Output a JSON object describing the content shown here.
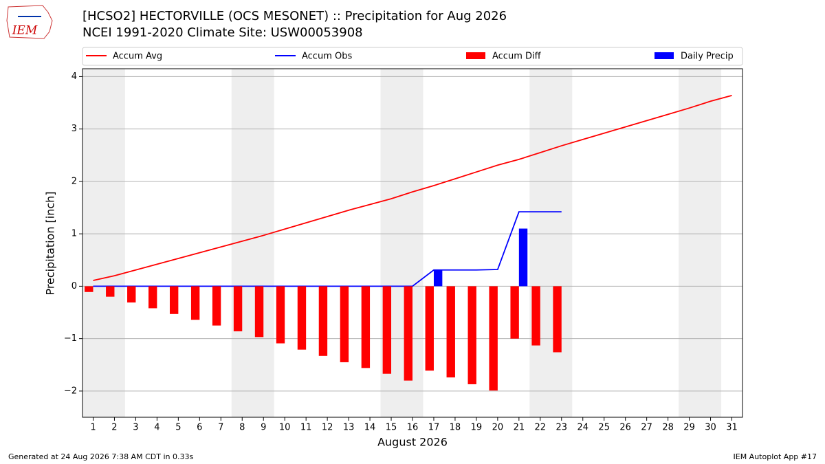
{
  "chart_data": {
    "type": "line",
    "title": "[HCSO2] HECTORVILLE (OCS MESONET) :: Precipitation for Aug 2026",
    "subtitle": "NCEI 1991-2020 Climate Site: USW00053908",
    "logo_text": "IEM",
    "x_label": "August 2026",
    "y_label": "Precipitation [inch]",
    "footer_left": "Generated at 24 Aug 2026 7:38 AM CDT in 0.33s",
    "footer_right": "IEM Autoplot App #17",
    "x": [
      1,
      2,
      3,
      4,
      5,
      6,
      7,
      8,
      9,
      10,
      11,
      12,
      13,
      14,
      15,
      16,
      17,
      18,
      19,
      20,
      21,
      22,
      23,
      24,
      25,
      26,
      27,
      28,
      29,
      30,
      31
    ],
    "xticks": [
      1,
      2,
      3,
      4,
      5,
      6,
      7,
      8,
      9,
      10,
      11,
      12,
      13,
      14,
      15,
      16,
      17,
      18,
      19,
      20,
      21,
      22,
      23,
      24,
      25,
      26,
      27,
      28,
      29,
      30,
      31
    ],
    "xlim": [
      0.5,
      31.5
    ],
    "ylim": [
      -2.5,
      4.15
    ],
    "yticks": [
      {
        "value": -2,
        "label": "−2"
      },
      {
        "value": -1,
        "label": "−1"
      },
      0,
      1,
      2,
      3,
      4
    ],
    "grid": true,
    "weekend_spans": [
      [
        0.5,
        2.5
      ],
      [
        7.5,
        9.5
      ],
      [
        14.5,
        16.5
      ],
      [
        21.5,
        23.5
      ],
      [
        28.5,
        30.5
      ]
    ],
    "series": [
      {
        "name": "Accum Avg",
        "color": "#ff0000",
        "style": "line",
        "values": [
          0.11,
          0.2,
          0.31,
          0.42,
          0.53,
          0.64,
          0.75,
          0.86,
          0.97,
          1.09,
          1.21,
          1.33,
          1.45,
          1.56,
          1.67,
          1.8,
          1.92,
          2.05,
          2.18,
          2.31,
          2.42,
          2.55,
          2.68,
          2.8,
          2.92,
          3.04,
          3.16,
          3.28,
          3.4,
          3.53,
          3.64
        ]
      },
      {
        "name": "Accum Obs",
        "color": "#0000ff",
        "style": "line",
        "values": [
          0,
          0,
          0,
          0,
          0,
          0,
          0,
          0,
          0,
          0,
          0,
          0,
          0,
          0,
          0,
          0,
          0.31,
          0.31,
          0.31,
          0.32,
          1.42,
          1.42,
          1.42,
          null,
          null,
          null,
          null,
          null,
          null,
          null,
          null
        ]
      },
      {
        "name": "Accum Diff",
        "color": "#ff0000",
        "style": "bar",
        "values": [
          -0.11,
          -0.2,
          -0.31,
          -0.42,
          -0.53,
          -0.64,
          -0.75,
          -0.86,
          -0.97,
          -1.09,
          -1.21,
          -1.33,
          -1.45,
          -1.56,
          -1.67,
          -1.8,
          -1.61,
          -1.74,
          -1.87,
          -1.99,
          -1.0,
          -1.13,
          -1.26,
          null,
          null,
          null,
          null,
          null,
          null,
          null,
          null
        ]
      },
      {
        "name": "Daily Precip",
        "color": "#0000ff",
        "style": "bar",
        "values": [
          0,
          0,
          0,
          0,
          0,
          0,
          0,
          0,
          0,
          0,
          0,
          0,
          0,
          0,
          0,
          0,
          0.31,
          0,
          0,
          0,
          1.1,
          0,
          0,
          null,
          null,
          null,
          null,
          null,
          null,
          null,
          null
        ]
      }
    ]
  }
}
